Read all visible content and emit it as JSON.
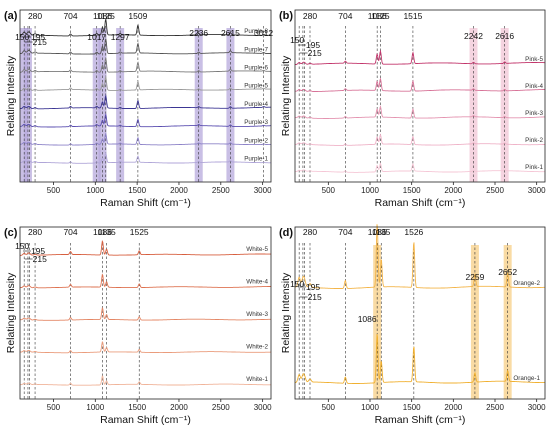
{
  "chart_data": [
    {
      "panel": "(a)",
      "type": "line",
      "xlabel": "Raman Shift (cm⁻¹)",
      "ylabel": "Relating Intensity",
      "xlim": [
        100,
        3100
      ],
      "xticks": [
        500,
        1000,
        1500,
        2000,
        2500,
        3000
      ],
      "peaks": [
        {
          "x": 150,
          "label": "150"
        },
        {
          "x": 195,
          "label": "195"
        },
        {
          "x": 215,
          "label": "215"
        },
        {
          "x": 280,
          "label": "280"
        },
        {
          "x": 704,
          "label": "704"
        },
        {
          "x": 1017,
          "label": "1017"
        },
        {
          "x": 1086,
          "label": "1086"
        },
        {
          "x": 1125,
          "label": "1125"
        },
        {
          "x": 1297,
          "label": "1297"
        },
        {
          "x": 1509,
          "label": "1509"
        },
        {
          "x": 2236,
          "label": "2236"
        },
        {
          "x": 2615,
          "label": "2615"
        },
        {
          "x": 3012,
          "label": "3012"
        }
      ],
      "bands": [
        150,
        195,
        1017,
        1086,
        1297,
        2236,
        2615
      ],
      "band_color": "#b7a9dc",
      "series": [
        {
          "name": "Purple-1",
          "color": "#b0a6d8"
        },
        {
          "name": "Purple-2",
          "color": "#8d83c8"
        },
        {
          "name": "Purple-3",
          "color": "#5b4fb0"
        },
        {
          "name": "Purple-4",
          "color": "#3c3694"
        },
        {
          "name": "Purple-5",
          "color": "#9a9a9a"
        },
        {
          "name": "Purple-6",
          "color": "#7a7a7a"
        },
        {
          "name": "Purple-7",
          "color": "#555555"
        },
        {
          "name": "Purple-8",
          "color": "#333333"
        }
      ]
    },
    {
      "panel": "(b)",
      "type": "line",
      "xlabel": "Raman Shift (cm⁻¹)",
      "ylabel": "Relating Intensity",
      "xlim": [
        100,
        3100
      ],
      "xticks": [
        500,
        1000,
        1500,
        2000,
        2500,
        3000
      ],
      "peaks": [
        {
          "x": 150,
          "label": "150"
        },
        {
          "x": 195,
          "label": "195"
        },
        {
          "x": 215,
          "label": "215"
        },
        {
          "x": 280,
          "label": "280"
        },
        {
          "x": 704,
          "label": "704"
        },
        {
          "x": 1086,
          "label": "1086"
        },
        {
          "x": 1125,
          "label": "1125"
        },
        {
          "x": 1515,
          "label": "1515"
        },
        {
          "x": 2242,
          "label": "2242"
        },
        {
          "x": 2616,
          "label": "2616"
        }
      ],
      "bands": [
        2242,
        2616
      ],
      "band_color": "#f2c6d6",
      "series": [
        {
          "name": "Pink-1",
          "color": "#f5c7d6"
        },
        {
          "name": "Pink-2",
          "color": "#efb3c8"
        },
        {
          "name": "Pink-3",
          "color": "#e494b0"
        },
        {
          "name": "Pink-4",
          "color": "#d77398"
        },
        {
          "name": "Pink-5",
          "color": "#c2356b"
        }
      ]
    },
    {
      "panel": "(c)",
      "type": "line",
      "xlabel": "Raman Shift (cm⁻¹)",
      "ylabel": "Relating Intensity",
      "xlim": [
        100,
        3100
      ],
      "xticks": [
        500,
        1000,
        1500,
        2000,
        2500,
        3000
      ],
      "peaks": [
        {
          "x": 150,
          "label": "150"
        },
        {
          "x": 195,
          "label": "195"
        },
        {
          "x": 215,
          "label": "215"
        },
        {
          "x": 280,
          "label": "280"
        },
        {
          "x": 704,
          "label": "704"
        },
        {
          "x": 1086,
          "label": "1086"
        },
        {
          "x": 1135,
          "label": "1135"
        },
        {
          "x": 1525,
          "label": "1525"
        }
      ],
      "bands": [],
      "band_color": "#f6c9b3",
      "series": [
        {
          "name": "White-1",
          "color": "#f0b49a"
        },
        {
          "name": "White-2",
          "color": "#ea9c7c"
        },
        {
          "name": "White-3",
          "color": "#e48766"
        },
        {
          "name": "White-4",
          "color": "#de7352"
        },
        {
          "name": "White-5",
          "color": "#d75f3f"
        }
      ]
    },
    {
      "panel": "(d)",
      "type": "line",
      "xlabel": "Raman Shift (cm⁻¹)",
      "ylabel": "Relating Intensity",
      "xlim": [
        100,
        3100
      ],
      "xticks": [
        500,
        1000,
        1500,
        2000,
        2500,
        3000
      ],
      "peaks": [
        {
          "x": 150,
          "label": "150"
        },
        {
          "x": 195,
          "label": "195"
        },
        {
          "x": 215,
          "label": "215"
        },
        {
          "x": 280,
          "label": "280"
        },
        {
          "x": 704,
          "label": "704"
        },
        {
          "x": 1086,
          "label": "1086"
        },
        {
          "x": 1135,
          "label": "1135"
        },
        {
          "x": 1526,
          "label": "1526"
        },
        {
          "x": 2259,
          "label": "2259"
        },
        {
          "x": 2652,
          "label": "2652"
        }
      ],
      "extra_labels": [
        {
          "x": 1086,
          "label": "1086"
        }
      ],
      "bands": [
        1086,
        2259,
        2652
      ],
      "band_color": "#f7cf86",
      "series": [
        {
          "name": "Orange-1",
          "color": "#f0b030"
        },
        {
          "name": "Orange-2",
          "color": "#f3b54a"
        }
      ]
    }
  ]
}
